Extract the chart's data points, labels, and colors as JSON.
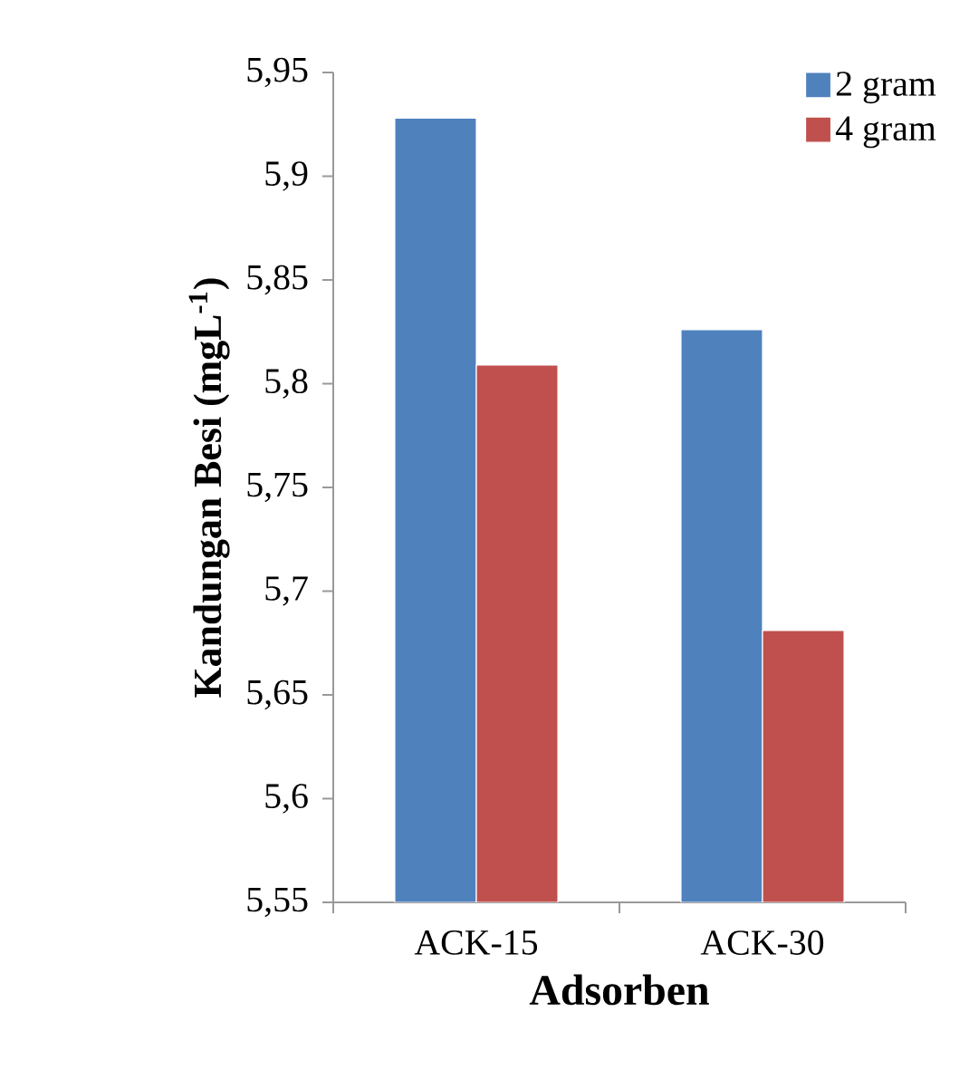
{
  "chart_data": {
    "type": "bar",
    "xlabel": "Adsorben",
    "ylabel": "Kandungan Besi (mgL$^{-1}$)",
    "categories": [
      "ACK-15",
      "ACK-30"
    ],
    "series": [
      {
        "name": "2 gram",
        "color": "#4f81bd",
        "values": [
          5.928,
          5.826
        ]
      },
      {
        "name": "4 gram",
        "color": "#c0504d",
        "values": [
          5.809,
          5.681
        ]
      }
    ],
    "ylim": [
      5.55,
      5.95
    ],
    "yticks": [
      {
        "value": 5.55,
        "label": "5,55"
      },
      {
        "value": 5.6,
        "label": "5,6"
      },
      {
        "value": 5.65,
        "label": "5,65"
      },
      {
        "value": 5.7,
        "label": "5,7"
      },
      {
        "value": 5.75,
        "label": "5,75"
      },
      {
        "value": 5.8,
        "label": "5,8"
      },
      {
        "value": 5.85,
        "label": "5,85"
      },
      {
        "value": 5.9,
        "label": "5,9"
      },
      {
        "value": 5.95,
        "label": "5,95"
      }
    ],
    "legend": "top right"
  }
}
